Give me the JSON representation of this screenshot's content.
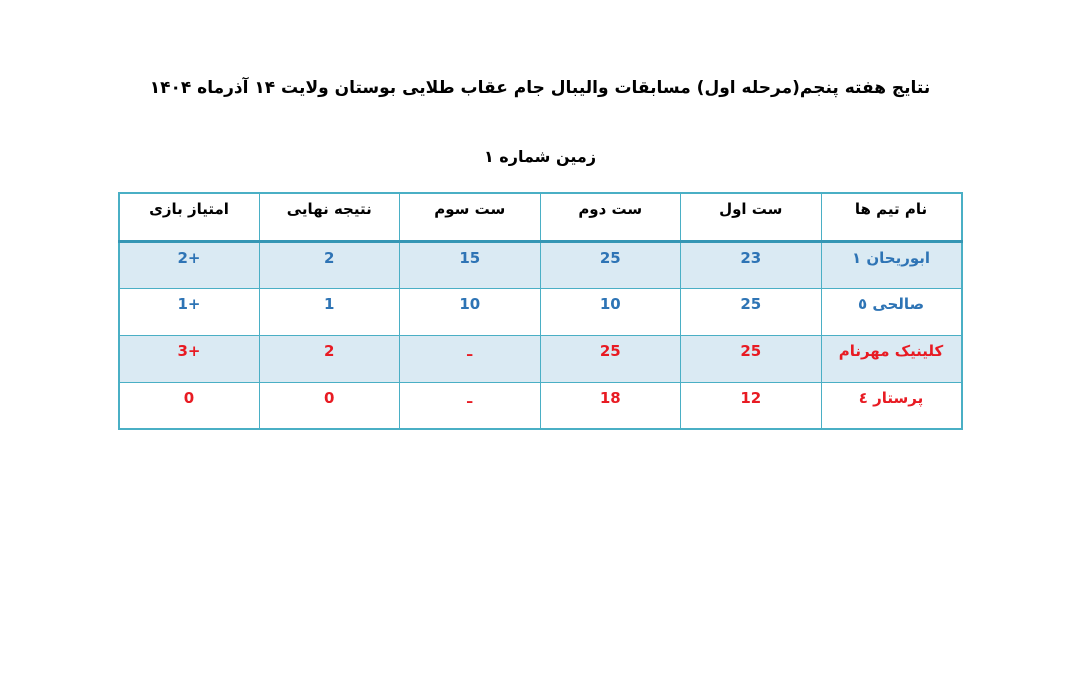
{
  "page": {
    "title": "نتایج هفته پنجم(مرحله اول) مسابقات والیبال جام عقاب طلایی بوستان ولایت ۱۴ آذرماه ۱۴۰۴",
    "subtitle": "زمین شماره ۱"
  },
  "colors": {
    "border": "#4aafc5",
    "header_rule": "#3596b4",
    "band_bg": "#daeaf3",
    "blue_text": "#2e74b5",
    "red_text": "#e81b23",
    "title_text": "#000000"
  },
  "table": {
    "columns": [
      "نام تیم ها",
      "ست اول",
      "ست دوم",
      "ست سوم",
      "نتیجه نهایی",
      "امتیاز بازی"
    ],
    "rows": [
      {
        "team": "ابوریحان ۱",
        "set1": "23",
        "set2": "25",
        "set3": "15",
        "final": "2",
        "points": "+2"
      },
      {
        "team": "صالحی ٥",
        "set1": "25",
        "set2": "10",
        "set3": "10",
        "final": "1",
        "points": "+1"
      },
      {
        "team": "کلینیک مهرنام",
        "set1": "25",
        "set2": "25",
        "set3": "ـ",
        "final": "2",
        "points": "+3"
      },
      {
        "team": "پرستار ٤",
        "set1": "12",
        "set2": "18",
        "set3": "ـ",
        "final": "0",
        "points": "0"
      }
    ]
  },
  "chart_data": {
    "type": "table",
    "title": "نتایج هفته پنجم(مرحله اول) مسابقات والیبال جام عقاب طلایی بوستان ولایت ۱۴ آذرماه ۱۴۰۴",
    "subtitle": "زمین شماره ۱",
    "columns": [
      "نام تیم ها",
      "ست اول",
      "ست دوم",
      "ست سوم",
      "نتیجه نهایی",
      "امتیاز بازی"
    ],
    "rows": [
      [
        "ابوریحان ۱",
        "23",
        "25",
        "15",
        "2",
        "+2"
      ],
      [
        "صالحی ٥",
        "25",
        "10",
        "10",
        "1",
        "+1"
      ],
      [
        "کلینیک مهرنام",
        "25",
        "25",
        "ـ",
        "2",
        "+3"
      ],
      [
        "پرستار ٤",
        "12",
        "18",
        "ـ",
        "0",
        "0"
      ]
    ]
  }
}
